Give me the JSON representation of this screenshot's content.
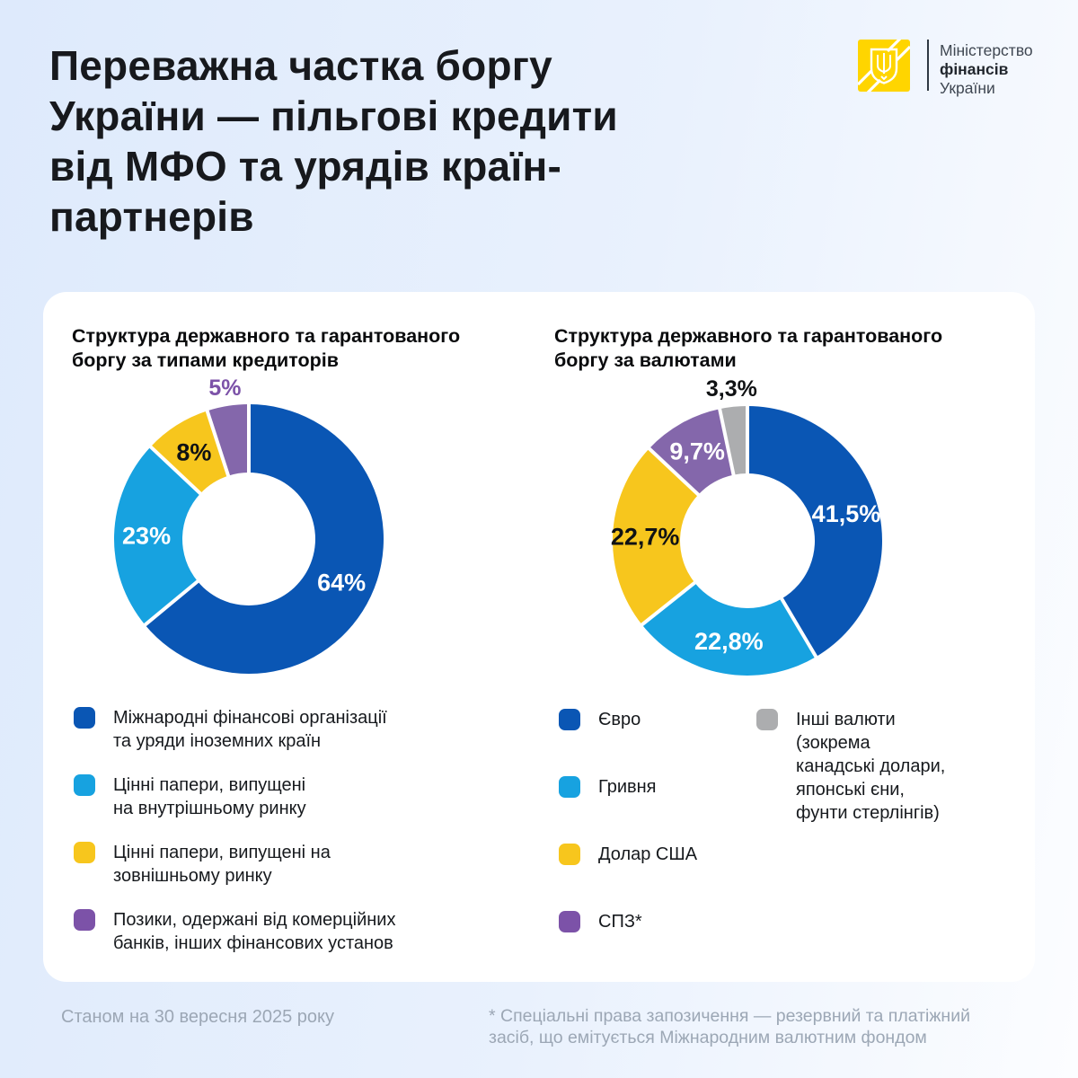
{
  "background": {
    "left_color": "#DEEAFC",
    "right_color": "#FCFDFF"
  },
  "header": {
    "title_lines": [
      "Переважна частка боргу",
      "України — пільгові кредити",
      "від МФО та урядів країн-",
      "партнерів"
    ],
    "logo": {
      "name_line1": "Міністерство",
      "name_line2": "фінансів",
      "name_line3": "України",
      "emblem_color": "#FFD500"
    }
  },
  "chart_data": [
    {
      "type": "pie",
      "subtype": "donut",
      "title": "Структура державного та гарантованого боргу за типами кредиторів",
      "title_lines": [
        "Структура державного та гарантованого",
        "боргу за типами кредиторів"
      ],
      "unit": "%",
      "start_angle": 0,
      "direction": "clockwise",
      "inner_radius_ratio": 0.49,
      "legend_position": "bottom",
      "slices": [
        {
          "label": "Міжнародні фінансові організації та уряди іноземних країн",
          "value": 64,
          "value_text": "64%",
          "color": "#0A56B4",
          "value_label_color": "#FFFFFF",
          "value_label_position": "inside"
        },
        {
          "label": "Цінні папери, випущені на внутрішньому ринку",
          "value": 23,
          "value_text": "23%",
          "color": "#17A2E0",
          "value_label_color": "#FFFFFF",
          "value_label_position": "inside"
        },
        {
          "label": "Цінні папери, випущені на зовнішньому ринку",
          "value": 8,
          "value_text": "8%",
          "color": "#F7C61D",
          "value_label_color": "#101214",
          "value_label_position": "inside"
        },
        {
          "label": "Позики, одержані від комерційних банків, інших фінансових установ",
          "value": 5,
          "value_text": "5%",
          "color": "#8467AB",
          "value_label_color": "#7C52A8",
          "value_label_position": "outside"
        }
      ],
      "legend_columns": [
        [
          {
            "color": "#0A56B4",
            "lines": [
              "Міжнародні фінансові організації",
              "та уряди іноземних країн"
            ]
          },
          {
            "color": "#17A2E0",
            "lines": [
              "Цінні папери, випущені",
              "на внутрішньому ринку"
            ]
          },
          {
            "color": "#F7C61D",
            "lines": [
              "Цінні папери, випущені на",
              "зовнішньому ринку"
            ]
          },
          {
            "color": "#7C52A8",
            "lines": [
              "Позики, одержані від комерційних",
              "банків, інших фінансових установ"
            ]
          }
        ]
      ]
    },
    {
      "type": "pie",
      "subtype": "donut",
      "title": "Структура державного та гарантованого боргу за валютами",
      "title_lines": [
        "Структура державного та гарантованого",
        "боргу за валютами"
      ],
      "unit": "%",
      "start_angle": 0,
      "direction": "clockwise",
      "inner_radius_ratio": 0.5,
      "legend_position": "bottom",
      "slices": [
        {
          "label": "Євро",
          "value": 41.5,
          "value_text": "41,5%",
          "color": "#0A56B4",
          "value_label_color": "#FFFFFF",
          "value_label_position": "inside"
        },
        {
          "label": "Гривня",
          "value": 22.8,
          "value_text": "22,8%",
          "color": "#17A2E0",
          "value_label_color": "#FFFFFF",
          "value_label_position": "inside"
        },
        {
          "label": "Долар США",
          "value": 22.7,
          "value_text": "22,7%",
          "color": "#F7C61D",
          "value_label_color": "#101214",
          "value_label_position": "inside"
        },
        {
          "label": "СПЗ*",
          "value": 9.7,
          "value_text": "9,7%",
          "color": "#8467AB",
          "value_label_color": "#FFFFFF",
          "value_label_position": "inside"
        },
        {
          "label": "Інші валюти (зокрема канадські долари, японські єни, фунти стерлінгів)",
          "value": 3.3,
          "value_text": "3,3%",
          "color": "#ACADAF",
          "value_label_color": "#101214",
          "value_label_position": "outside"
        }
      ],
      "legend_columns": [
        [
          {
            "color": "#0A56B4",
            "lines": [
              "Євро"
            ]
          },
          {
            "color": "#17A2E0",
            "lines": [
              "Гривня"
            ]
          },
          {
            "color": "#F7C61D",
            "lines": [
              "Долар США"
            ]
          },
          {
            "color": "#7C52A8",
            "lines": [
              "СПЗ*"
            ]
          }
        ],
        [
          {
            "color": "#ACADAF",
            "lines": [
              "Інші валюти",
              "(зокрема",
              "канадські долари,",
              "японські єни,",
              "фунти стерлінгів)"
            ]
          }
        ]
      ]
    }
  ],
  "footer": {
    "as_of": "Станом на 30 вересня 2025 року",
    "footnote_lines": [
      "* Спеціальні права запозичення — резервний та платіжний",
      "засіб, що емітується Міжнародним валютним фондом"
    ]
  }
}
